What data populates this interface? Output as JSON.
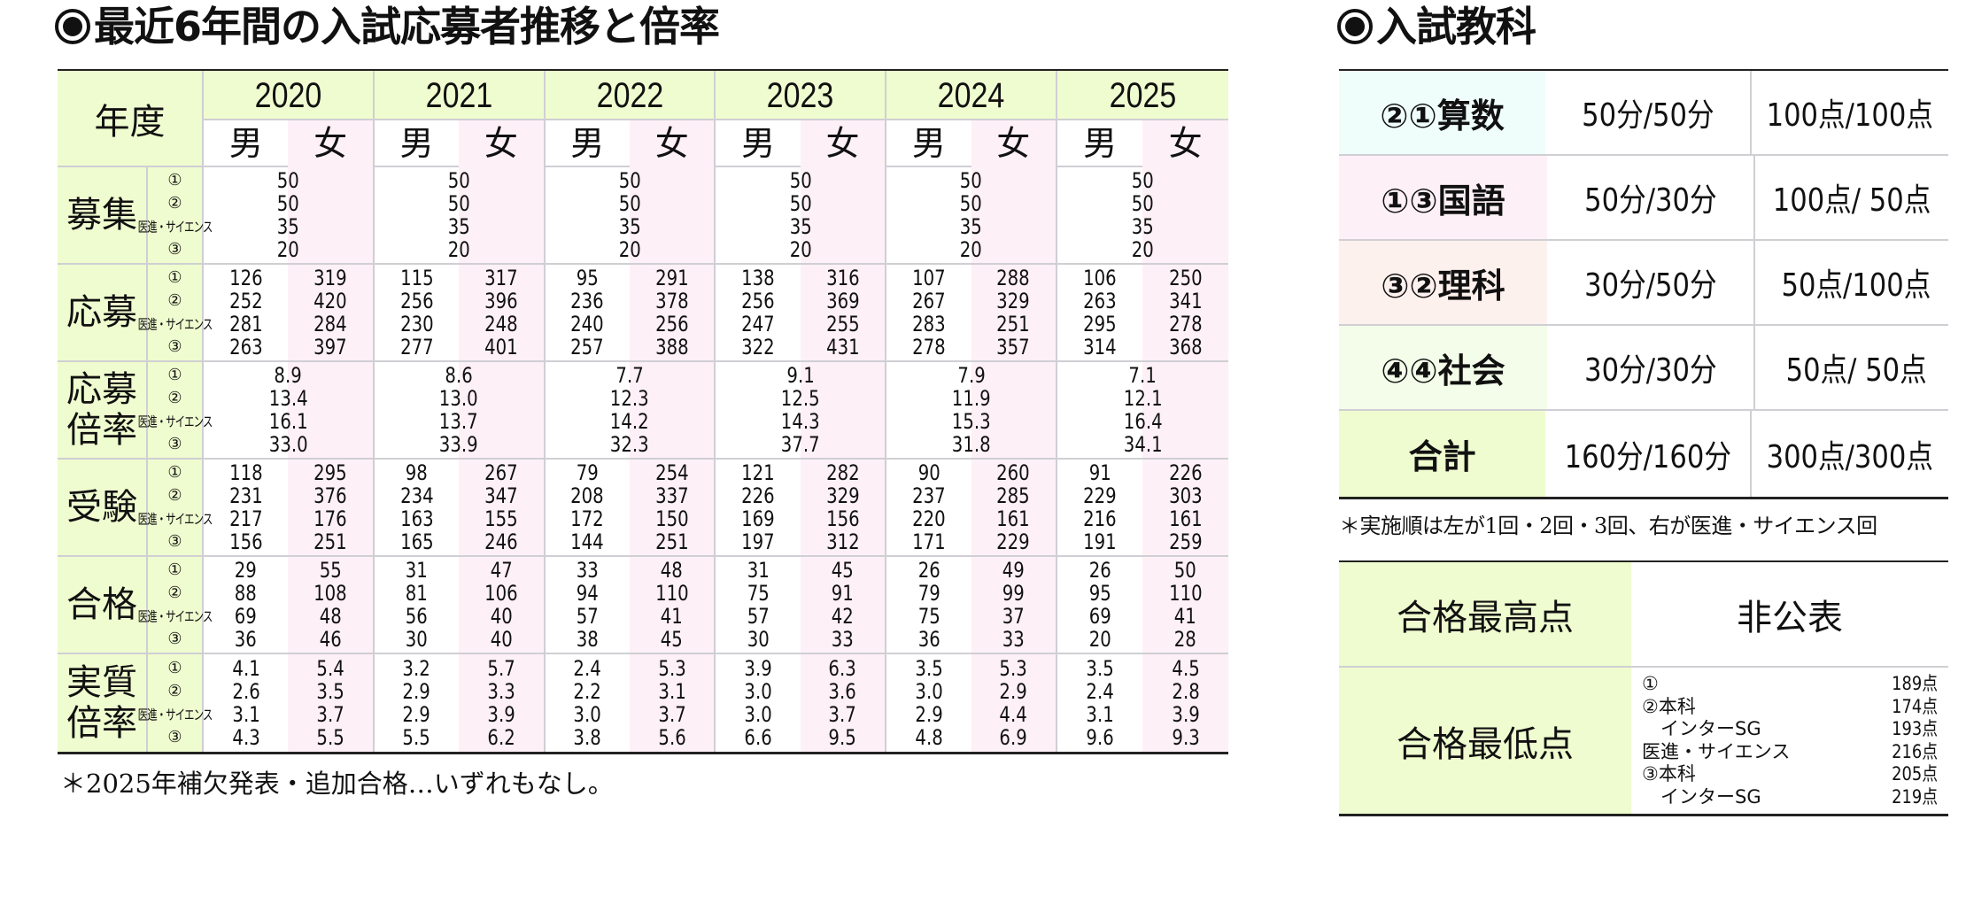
{
  "left_title": "最近6年間の入試応募者推移と倍率",
  "right_title": "入試教科",
  "main_table": {
    "year_header_label": "年度",
    "years": [
      "2020",
      "2021",
      "2022",
      "2023",
      "2024",
      "2025"
    ],
    "sex_labels": {
      "male": "男",
      "female": "女"
    },
    "sub_labels": [
      "①",
      "②",
      "医進・サイエンス",
      "③"
    ],
    "sections": [
      {
        "label": [
          "募集"
        ],
        "merged": true,
        "data": [
          [
            "50",
            "50",
            "35",
            "20"
          ],
          [
            "50",
            "50",
            "35",
            "20"
          ],
          [
            "50",
            "50",
            "35",
            "20"
          ],
          [
            "50",
            "50",
            "35",
            "20"
          ],
          [
            "50",
            "50",
            "35",
            "20"
          ],
          [
            "50",
            "50",
            "35",
            "20"
          ]
        ]
      },
      {
        "label": [
          "応募"
        ],
        "merged": false,
        "data": [
          {
            "male": [
              "126",
              "252",
              "281",
              "263"
            ],
            "female": [
              "319",
              "420",
              "284",
              "397"
            ]
          },
          {
            "male": [
              "115",
              "256",
              "230",
              "277"
            ],
            "female": [
              "317",
              "396",
              "248",
              "401"
            ]
          },
          {
            "male": [
              "95",
              "236",
              "240",
              "257"
            ],
            "female": [
              "291",
              "378",
              "256",
              "388"
            ]
          },
          {
            "male": [
              "138",
              "256",
              "247",
              "322"
            ],
            "female": [
              "316",
              "369",
              "255",
              "431"
            ]
          },
          {
            "male": [
              "107",
              "267",
              "283",
              "278"
            ],
            "female": [
              "288",
              "329",
              "251",
              "357"
            ]
          },
          {
            "male": [
              "106",
              "263",
              "295",
              "314"
            ],
            "female": [
              "250",
              "341",
              "278",
              "368"
            ]
          }
        ]
      },
      {
        "label": [
          "応募",
          "倍率"
        ],
        "merged": true,
        "data": [
          [
            "8.9",
            "13.4",
            "16.1",
            "33.0"
          ],
          [
            "8.6",
            "13.0",
            "13.7",
            "33.9"
          ],
          [
            "7.7",
            "12.3",
            "14.2",
            "32.3"
          ],
          [
            "9.1",
            "12.5",
            "14.3",
            "37.7"
          ],
          [
            "7.9",
            "11.9",
            "15.3",
            "31.8"
          ],
          [
            "7.1",
            "12.1",
            "16.4",
            "34.1"
          ]
        ]
      },
      {
        "label": [
          "受験"
        ],
        "merged": false,
        "data": [
          {
            "male": [
              "118",
              "231",
              "217",
              "156"
            ],
            "female": [
              "295",
              "376",
              "176",
              "251"
            ]
          },
          {
            "male": [
              "98",
              "234",
              "163",
              "165"
            ],
            "female": [
              "267",
              "347",
              "155",
              "246"
            ]
          },
          {
            "male": [
              "79",
              "208",
              "172",
              "144"
            ],
            "female": [
              "254",
              "337",
              "150",
              "251"
            ]
          },
          {
            "male": [
              "121",
              "226",
              "169",
              "197"
            ],
            "female": [
              "282",
              "329",
              "156",
              "312"
            ]
          },
          {
            "male": [
              "90",
              "237",
              "220",
              "171"
            ],
            "female": [
              "260",
              "285",
              "161",
              "229"
            ]
          },
          {
            "male": [
              "91",
              "229",
              "216",
              "191"
            ],
            "female": [
              "226",
              "303",
              "161",
              "259"
            ]
          }
        ]
      },
      {
        "label": [
          "合格"
        ],
        "merged": false,
        "data": [
          {
            "male": [
              "29",
              "88",
              "69",
              "36"
            ],
            "female": [
              "55",
              "108",
              "48",
              "46"
            ]
          },
          {
            "male": [
              "31",
              "81",
              "56",
              "30"
            ],
            "female": [
              "47",
              "106",
              "40",
              "40"
            ]
          },
          {
            "male": [
              "33",
              "94",
              "57",
              "38"
            ],
            "female": [
              "48",
              "110",
              "41",
              "45"
            ]
          },
          {
            "male": [
              "31",
              "75",
              "57",
              "30"
            ],
            "female": [
              "45",
              "91",
              "42",
              "33"
            ]
          },
          {
            "male": [
              "26",
              "79",
              "75",
              "36"
            ],
            "female": [
              "49",
              "99",
              "37",
              "33"
            ]
          },
          {
            "male": [
              "26",
              "95",
              "69",
              "20"
            ],
            "female": [
              "50",
              "110",
              "41",
              "28"
            ]
          }
        ]
      },
      {
        "label": [
          "実質",
          "倍率"
        ],
        "merged": false,
        "data": [
          {
            "male": [
              "4.1",
              "2.6",
              "3.1",
              "4.3"
            ],
            "female": [
              "5.4",
              "3.5",
              "3.7",
              "5.5"
            ]
          },
          {
            "male": [
              "3.2",
              "2.9",
              "2.9",
              "5.5"
            ],
            "female": [
              "5.7",
              "3.3",
              "3.9",
              "6.2"
            ]
          },
          {
            "male": [
              "2.4",
              "2.2",
              "3.0",
              "3.8"
            ],
            "female": [
              "5.3",
              "3.1",
              "3.7",
              "5.6"
            ]
          },
          {
            "male": [
              "3.9",
              "3.0",
              "3.0",
              "6.6"
            ],
            "female": [
              "6.3",
              "3.6",
              "3.7",
              "9.5"
            ]
          },
          {
            "male": [
              "3.5",
              "3.0",
              "2.9",
              "4.8"
            ],
            "female": [
              "5.3",
              "2.9",
              "4.4",
              "6.9"
            ]
          },
          {
            "male": [
              "3.5",
              "2.4",
              "3.1",
              "9.6"
            ],
            "female": [
              "4.5",
              "2.8",
              "3.9",
              "9.3"
            ]
          }
        ]
      }
    ],
    "footnote": "＊2025年補欠発表・追加合格…いずれもなし。"
  },
  "subjects_table": {
    "rows": [
      {
        "name": "②①算数",
        "time": "50分/50分",
        "points": "100点/100点",
        "color": "#effefb"
      },
      {
        "name": "①③国語",
        "time": "50分/30分",
        "points": "100点/ 50点",
        "color": "#fdf0f6"
      },
      {
        "name": "③②理科",
        "time": "30分/50分",
        "points": " 50点/100点",
        "color": "#fdf1ee"
      },
      {
        "name": "④④社会",
        "time": "30分/30分",
        "points": " 50点/ 50点",
        "color": "#f3fde9"
      },
      {
        "name": "合計",
        "time": "160分/160分",
        "points": "300点/300点",
        "color": "#effccf"
      }
    ],
    "note": "＊実施順は左が1回・2回・3回、右が医進・サイエンス回"
  },
  "scores_table": {
    "max_label": "合格最高点",
    "max_value": "非公表",
    "min_label": "合格最低点",
    "min_items": [
      {
        "label": "①",
        "value": "189点"
      },
      {
        "label": "②本科",
        "value": "174点"
      },
      {
        "label": "　インターSG",
        "value": "193点"
      },
      {
        "label": "医進・サイエンス",
        "value": "216点"
      },
      {
        "label": "③本科",
        "value": "205点"
      },
      {
        "label": "　インターSG",
        "value": "219点"
      }
    ]
  },
  "colors": {
    "label_bg": "#effccf",
    "female_bg": "#fdf0f6",
    "grid": "#cfcfd4",
    "rule": "#222222"
  }
}
